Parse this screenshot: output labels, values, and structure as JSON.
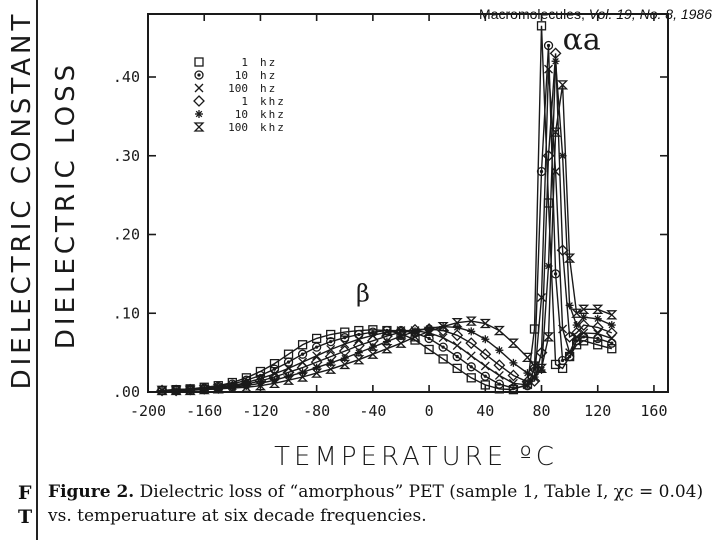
{
  "citation": {
    "journal": "Macromolecules,",
    "issue": "Vol. 19, No. 8, 1986"
  },
  "caption": {
    "figure_label": "Figure 2.",
    "text": "Dielectric loss of “amorphous” PET (sample 1, Table I, χc = 0.04) vs. temperuature at six decade frequencies."
  },
  "stray_letters": [
    "F",
    "T"
  ],
  "chart_data": {
    "type": "line",
    "title": "",
    "xlabel": "TEMPERATURE ºC",
    "ylabel": "DIELECTRIC LOSS",
    "ylabel_outer": "DIELECTRIC CONSTANT",
    "xlim": [
      -200,
      170
    ],
    "ylim": [
      0,
      0.48
    ],
    "xticks": [
      -200,
      -160,
      -120,
      -80,
      -40,
      0,
      40,
      80,
      120,
      160
    ],
    "xtick_labels": [
      "-200",
      "-160",
      "-120",
      "-80",
      "-40",
      "0",
      "40",
      "80",
      "120",
      "160"
    ],
    "yticks": [
      0,
      0.1,
      0.2,
      0.3,
      0.4
    ],
    "ytick_labels": [
      ".00",
      ".10",
      ".20",
      ".30",
      ".40"
    ],
    "grid": false,
    "legend_position": "top-left",
    "annotations": [
      {
        "text": "αa",
        "x": 95,
        "y": 0.435
      },
      {
        "text": "β",
        "x": -52,
        "y": 0.115
      }
    ],
    "series": [
      {
        "name": "1 hz",
        "marker": "square",
        "x": [
          -190,
          -180,
          -170,
          -160,
          -150,
          -140,
          -130,
          -120,
          -110,
          -100,
          -90,
          -80,
          -70,
          -60,
          -50,
          -40,
          -30,
          -20,
          -10,
          0,
          10,
          20,
          30,
          40,
          50,
          60,
          70,
          75,
          80,
          85,
          90,
          95,
          100,
          105,
          110,
          120,
          130
        ],
        "y": [
          0.002,
          0.003,
          0.004,
          0.006,
          0.008,
          0.012,
          0.018,
          0.026,
          0.036,
          0.048,
          0.06,
          0.068,
          0.073,
          0.076,
          0.078,
          0.079,
          0.078,
          0.074,
          0.066,
          0.054,
          0.042,
          0.03,
          0.018,
          0.009,
          0.004,
          0.003,
          0.01,
          0.08,
          0.465,
          0.24,
          0.035,
          0.03,
          0.045,
          0.06,
          0.065,
          0.06,
          0.055
        ]
      },
      {
        "name": "10 hz",
        "marker": "circle",
        "x": [
          -190,
          -180,
          -170,
          -160,
          -150,
          -140,
          -130,
          -120,
          -110,
          -100,
          -90,
          -80,
          -70,
          -60,
          -50,
          -40,
          -30,
          -20,
          -10,
          0,
          10,
          20,
          30,
          40,
          50,
          60,
          70,
          75,
          80,
          85,
          90,
          95,
          100,
          105,
          110,
          120,
          130
        ],
        "y": [
          0.002,
          0.003,
          0.004,
          0.005,
          0.007,
          0.01,
          0.015,
          0.021,
          0.029,
          0.038,
          0.048,
          0.057,
          0.064,
          0.069,
          0.073,
          0.076,
          0.078,
          0.078,
          0.075,
          0.068,
          0.057,
          0.045,
          0.032,
          0.02,
          0.01,
          0.005,
          0.008,
          0.03,
          0.28,
          0.44,
          0.15,
          0.04,
          0.045,
          0.065,
          0.07,
          0.068,
          0.062
        ]
      },
      {
        "name": "100 hz",
        "marker": "x",
        "x": [
          -190,
          -180,
          -170,
          -160,
          -150,
          -140,
          -130,
          -120,
          -110,
          -100,
          -90,
          -80,
          -70,
          -60,
          -50,
          -40,
          -30,
          -20,
          -10,
          0,
          10,
          20,
          30,
          40,
          50,
          60,
          70,
          75,
          80,
          85,
          90,
          95,
          100,
          105,
          110,
          120,
          130
        ],
        "y": [
          0.002,
          0.002,
          0.003,
          0.004,
          0.006,
          0.008,
          0.012,
          0.017,
          0.023,
          0.03,
          0.038,
          0.046,
          0.054,
          0.061,
          0.067,
          0.072,
          0.076,
          0.078,
          0.078,
          0.075,
          0.069,
          0.059,
          0.046,
          0.033,
          0.021,
          0.011,
          0.009,
          0.018,
          0.12,
          0.41,
          0.28,
          0.08,
          0.05,
          0.07,
          0.075,
          0.074,
          0.068
        ]
      },
      {
        "name": "1 khz",
        "marker": "diamond",
        "x": [
          -190,
          -180,
          -170,
          -160,
          -150,
          -140,
          -130,
          -120,
          -110,
          -100,
          -90,
          -80,
          -70,
          -60,
          -50,
          -40,
          -30,
          -20,
          -10,
          0,
          10,
          20,
          30,
          40,
          50,
          60,
          70,
          75,
          80,
          85,
          90,
          95,
          100,
          105,
          110,
          120,
          130
        ],
        "y": [
          0.002,
          0.002,
          0.003,
          0.004,
          0.005,
          0.007,
          0.01,
          0.014,
          0.019,
          0.025,
          0.031,
          0.038,
          0.045,
          0.052,
          0.059,
          0.065,
          0.071,
          0.076,
          0.079,
          0.08,
          0.078,
          0.072,
          0.062,
          0.048,
          0.034,
          0.021,
          0.013,
          0.014,
          0.05,
          0.3,
          0.43,
          0.18,
          0.07,
          0.075,
          0.085,
          0.082,
          0.075
        ]
      },
      {
        "name": "10 khz",
        "marker": "asterisk",
        "x": [
          -190,
          -180,
          -170,
          -160,
          -150,
          -140,
          -130,
          -120,
          -110,
          -100,
          -90,
          -80,
          -70,
          -60,
          -50,
          -40,
          -30,
          -20,
          -10,
          0,
          10,
          20,
          30,
          40,
          50,
          60,
          70,
          75,
          80,
          85,
          90,
          95,
          100,
          105,
          110,
          120,
          130
        ],
        "y": [
          0.002,
          0.002,
          0.003,
          0.003,
          0.004,
          0.006,
          0.008,
          0.011,
          0.015,
          0.02,
          0.025,
          0.031,
          0.037,
          0.043,
          0.05,
          0.057,
          0.064,
          0.071,
          0.077,
          0.081,
          0.083,
          0.082,
          0.077,
          0.067,
          0.053,
          0.037,
          0.024,
          0.019,
          0.028,
          0.16,
          0.42,
          0.3,
          0.11,
          0.085,
          0.095,
          0.093,
          0.085
        ]
      },
      {
        "name": "100 khz",
        "marker": "hourglass",
        "x": [
          -190,
          -180,
          -170,
          -160,
          -150,
          -140,
          -130,
          -120,
          -110,
          -100,
          -90,
          -80,
          -70,
          -60,
          -50,
          -40,
          -30,
          -20,
          -10,
          0,
          10,
          20,
          30,
          40,
          50,
          60,
          70,
          75,
          80,
          85,
          90,
          95,
          100,
          105,
          110,
          120,
          130
        ],
        "y": [
          0.002,
          0.002,
          0.002,
          0.003,
          0.004,
          0.005,
          0.006,
          0.008,
          0.011,
          0.015,
          0.019,
          0.024,
          0.029,
          0.035,
          0.041,
          0.048,
          0.055,
          0.062,
          0.07,
          0.077,
          0.083,
          0.088,
          0.09,
          0.087,
          0.078,
          0.062,
          0.044,
          0.033,
          0.03,
          0.07,
          0.33,
          0.39,
          0.17,
          0.1,
          0.105,
          0.105,
          0.098
        ]
      }
    ]
  }
}
